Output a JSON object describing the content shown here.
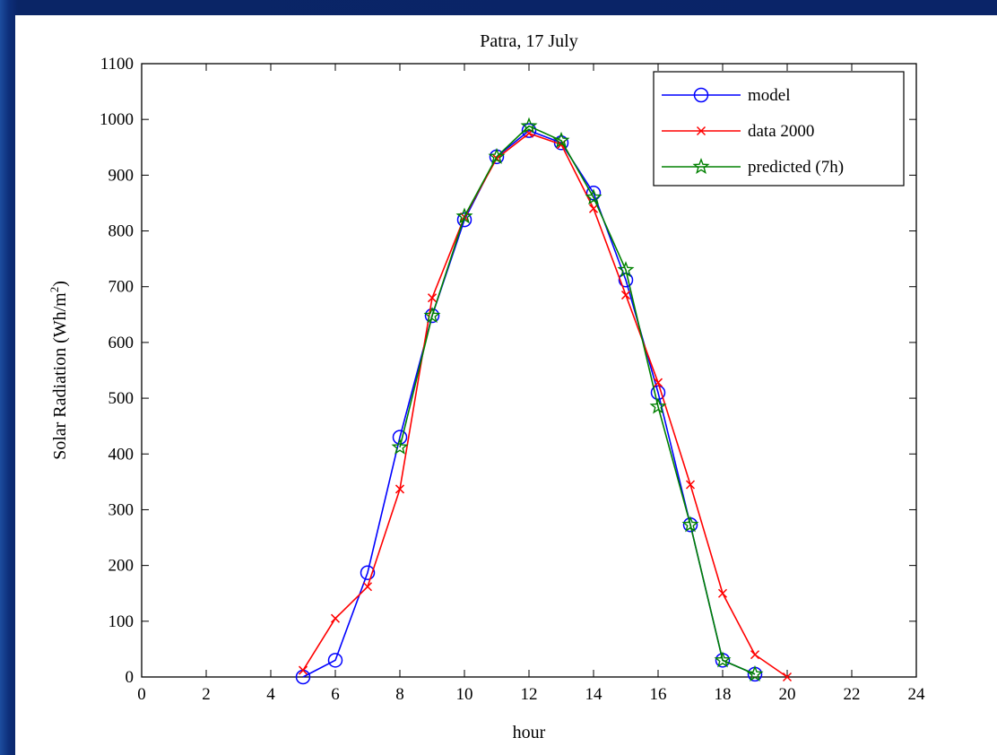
{
  "chart_data": {
    "type": "line",
    "title": "Patra, 17 July",
    "xlabel": "hour",
    "ylabel_main": "Solar Radiation (Wh/m",
    "ylabel_sup": "2",
    "ylabel_close": ")",
    "xlim": [
      0,
      24
    ],
    "ylim": [
      0,
      1100
    ],
    "xticks": [
      0,
      2,
      4,
      6,
      8,
      10,
      12,
      14,
      16,
      18,
      20,
      22,
      24
    ],
    "yticks": [
      0,
      100,
      200,
      300,
      400,
      500,
      600,
      700,
      800,
      900,
      1000,
      1100
    ],
    "grid": false,
    "legend_position": "top-right",
    "series": [
      {
        "name": "model",
        "color": "#0000ff",
        "marker": "circle",
        "x": [
          5,
          6,
          7,
          8,
          9,
          10,
          11,
          12,
          13,
          14,
          15,
          16,
          17,
          18,
          19
        ],
        "y": [
          0,
          30,
          187,
          430,
          648,
          820,
          933,
          980,
          958,
          868,
          712,
          510,
          273,
          30,
          5
        ]
      },
      {
        "name": "data 2000",
        "color": "#ff0000",
        "marker": "x",
        "x": [
          5,
          6,
          7,
          8,
          9,
          10,
          11,
          12,
          13,
          14,
          15,
          16,
          17,
          18,
          19,
          20
        ],
        "y": [
          12,
          105,
          162,
          337,
          680,
          825,
          930,
          975,
          955,
          840,
          685,
          528,
          345,
          150,
          40,
          0
        ]
      },
      {
        "name": "predicted (7h)",
        "color": "#008000",
        "marker": "star",
        "x": [
          8,
          9,
          10,
          11,
          12,
          13,
          14,
          15,
          16,
          17,
          18,
          19
        ],
        "y": [
          412,
          648,
          826,
          933,
          988,
          962,
          860,
          730,
          485,
          273,
          30,
          5
        ]
      }
    ]
  }
}
